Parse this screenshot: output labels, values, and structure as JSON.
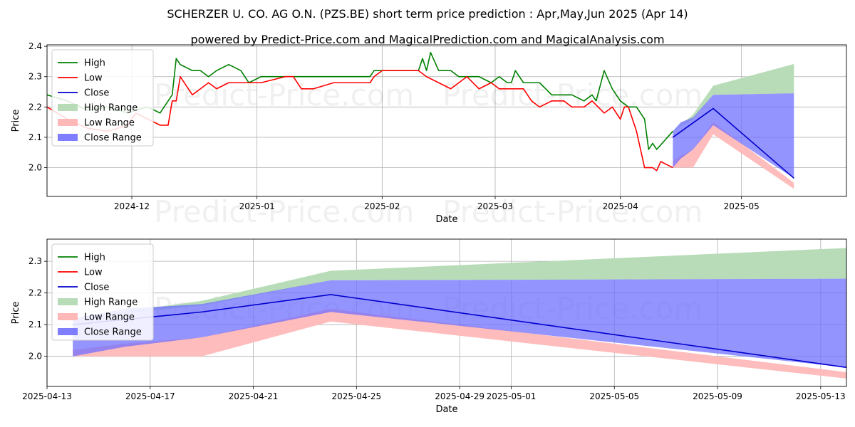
{
  "title": "SCHERZER U. CO. AG O.N. (PZS.BE) short term price prediction : Apr,May,Jun 2025 (Apr 14)",
  "subtitle": "powered by Predict-Price.com and MagicalPrediction.com and MagicalAnalysis.com",
  "watermark": "Predict-Price.com",
  "colors": {
    "high": "#008000",
    "low": "#ff0000",
    "close": "#0000cc",
    "high_range": "#b8dcb8",
    "low_range": "#ffb8b8",
    "close_range": "#7070ff"
  },
  "chart_data": [
    {
      "type": "line",
      "xlabel": "Date",
      "ylabel": "Price",
      "x_ticks": [
        "2024-12",
        "2025-01",
        "2025-02",
        "2025-03",
        "2025-04",
        "2025-05"
      ],
      "y_ticks": [
        "2.0",
        "2.1",
        "2.2",
        "2.3",
        "2.4"
      ],
      "ylim": [
        1.905,
        2.405
      ],
      "xlim": [
        "2024-11-10",
        "2025-05-27"
      ],
      "grid": true,
      "legend_position": "top-left",
      "legend": [
        "High",
        "Low",
        "Close",
        "High Range",
        "Low Range",
        "Close Range"
      ],
      "series": [
        {
          "name": "High",
          "x": [
            "2024-11-10",
            "2024-11-15",
            "2024-11-20",
            "2024-11-25",
            "2024-11-30",
            "2024-12-02",
            "2024-12-05",
            "2024-12-08",
            "2024-12-10",
            "2024-12-11",
            "2024-12-12",
            "2024-12-13",
            "2024-12-16",
            "2024-12-18",
            "2024-12-20",
            "2024-12-22",
            "2024-12-25",
            "2024-12-28",
            "2024-12-30",
            "2025-01-02",
            "2025-01-05",
            "2025-01-10",
            "2025-01-15",
            "2025-01-20",
            "2025-01-25",
            "2025-01-29",
            "2025-01-30",
            "2025-02-01",
            "2025-02-05",
            "2025-02-10",
            "2025-02-11",
            "2025-02-12",
            "2025-02-13",
            "2025-02-15",
            "2025-02-18",
            "2025-02-20",
            "2025-02-22",
            "2025-02-25",
            "2025-02-28",
            "2025-03-02",
            "2025-03-04",
            "2025-03-05",
            "2025-03-06",
            "2025-03-08",
            "2025-03-10",
            "2025-03-12",
            "2025-03-15",
            "2025-03-18",
            "2025-03-20",
            "2025-03-23",
            "2025-03-25",
            "2025-03-26",
            "2025-03-28",
            "2025-03-30",
            "2025-04-01",
            "2025-04-03",
            "2025-04-05",
            "2025-04-07",
            "2025-04-08",
            "2025-04-09",
            "2025-04-10",
            "2025-04-14"
          ],
          "values": [
            2.24,
            2.22,
            2.19,
            2.2,
            2.18,
            2.19,
            2.2,
            2.18,
            2.22,
            2.24,
            2.36,
            2.34,
            2.32,
            2.32,
            2.3,
            2.32,
            2.34,
            2.32,
            2.28,
            2.3,
            2.3,
            2.3,
            2.3,
            2.3,
            2.3,
            2.3,
            2.32,
            2.32,
            2.32,
            2.32,
            2.36,
            2.32,
            2.38,
            2.32,
            2.32,
            2.3,
            2.3,
            2.3,
            2.28,
            2.3,
            2.28,
            2.28,
            2.32,
            2.28,
            2.28,
            2.28,
            2.24,
            2.24,
            2.24,
            2.22,
            2.24,
            2.22,
            2.32,
            2.26,
            2.22,
            2.2,
            2.2,
            2.16,
            2.06,
            2.08,
            2.06,
            2.12
          ]
        },
        {
          "name": "Low",
          "x": [
            "2024-11-10",
            "2024-11-15",
            "2024-11-20",
            "2024-11-25",
            "2024-11-30",
            "2024-12-02",
            "2024-12-05",
            "2024-12-08",
            "2024-12-10",
            "2024-12-11",
            "2024-12-12",
            "2024-12-13",
            "2024-12-16",
            "2024-12-18",
            "2024-12-20",
            "2024-12-22",
            "2024-12-25",
            "2024-12-28",
            "2024-12-30",
            "2025-01-02",
            "2025-01-05",
            "2025-01-08",
            "2025-01-10",
            "2025-01-12",
            "2025-01-15",
            "2025-01-20",
            "2025-01-25",
            "2025-01-29",
            "2025-01-30",
            "2025-02-01",
            "2025-02-05",
            "2025-02-10",
            "2025-02-12",
            "2025-02-15",
            "2025-02-18",
            "2025-02-20",
            "2025-02-22",
            "2025-02-25",
            "2025-02-28",
            "2025-03-02",
            "2025-03-05",
            "2025-03-08",
            "2025-03-10",
            "2025-03-12",
            "2025-03-15",
            "2025-03-18",
            "2025-03-20",
            "2025-03-23",
            "2025-03-25",
            "2025-03-28",
            "2025-03-30",
            "2025-04-01",
            "2025-04-02",
            "2025-04-03",
            "2025-04-05",
            "2025-04-07",
            "2025-04-09",
            "2025-04-10",
            "2025-04-11",
            "2025-04-14"
          ],
          "values": [
            2.2,
            2.16,
            2.13,
            2.12,
            2.14,
            2.18,
            2.16,
            2.14,
            2.14,
            2.22,
            2.22,
            2.3,
            2.24,
            2.26,
            2.28,
            2.26,
            2.28,
            2.28,
            2.28,
            2.28,
            2.29,
            2.3,
            2.3,
            2.26,
            2.26,
            2.28,
            2.28,
            2.28,
            2.3,
            2.32,
            2.32,
            2.32,
            2.3,
            2.28,
            2.26,
            2.28,
            2.3,
            2.26,
            2.28,
            2.26,
            2.26,
            2.26,
            2.22,
            2.2,
            2.22,
            2.22,
            2.2,
            2.2,
            2.22,
            2.18,
            2.2,
            2.16,
            2.2,
            2.2,
            2.12,
            2.0,
            2.0,
            1.99,
            2.02,
            2.0
          ]
        },
        {
          "name": "Close",
          "x": [
            "2025-04-14",
            "2025-04-24",
            "2025-05-14"
          ],
          "values": [
            2.1,
            2.195,
            1.965
          ]
        }
      ],
      "ranges": [
        {
          "name": "High Range",
          "x": [
            "2025-04-14",
            "2025-04-19",
            "2025-04-24",
            "2025-05-14"
          ],
          "upper": [
            2.12,
            2.175,
            2.27,
            2.342
          ],
          "lower": [
            2.12,
            2.16,
            2.24,
            2.245
          ]
        },
        {
          "name": "Low Range",
          "x": [
            "2025-04-14",
            "2025-04-16",
            "2025-04-19",
            "2025-04-24",
            "2025-05-14"
          ],
          "upper": [
            2.02,
            2.04,
            2.06,
            2.15,
            1.95
          ],
          "lower": [
            2.0,
            2.0,
            2.0,
            2.11,
            1.93
          ]
        },
        {
          "name": "Close Range",
          "x": [
            "2025-04-14",
            "2025-04-16",
            "2025-04-19",
            "2025-04-24",
            "2025-05-14"
          ],
          "upper": [
            2.12,
            2.15,
            2.165,
            2.24,
            2.245
          ],
          "lower": [
            2.0,
            2.03,
            2.06,
            2.14,
            1.965
          ]
        }
      ]
    },
    {
      "type": "line",
      "xlabel": "Date",
      "ylabel": "Price",
      "x_ticks": [
        "2025-04-13",
        "2025-04-17",
        "2025-04-21",
        "2025-04-25",
        "2025-04-29",
        "2025-05-01",
        "2025-05-05",
        "2025-05-09",
        "2025-05-13"
      ],
      "y_ticks": [
        "2.0",
        "2.1",
        "2.2",
        "2.3"
      ],
      "ylim": [
        1.905,
        2.37
      ],
      "xlim": [
        "2025-04-13",
        "2025-05-14"
      ],
      "grid": true,
      "legend_position": "top-left",
      "legend": [
        "High",
        "Low",
        "Close",
        "High Range",
        "Low Range",
        "Close Range"
      ],
      "series": [
        {
          "name": "Close",
          "x": [
            "2025-04-14",
            "2025-04-19",
            "2025-04-24",
            "2025-05-14"
          ],
          "values": [
            2.1,
            2.14,
            2.195,
            1.965
          ]
        }
      ],
      "ranges": [
        {
          "name": "High Range",
          "x": [
            "2025-04-14",
            "2025-04-19",
            "2025-04-24",
            "2025-05-14"
          ],
          "upper": [
            2.12,
            2.175,
            2.27,
            2.342
          ],
          "lower": [
            2.12,
            2.16,
            2.24,
            2.245
          ]
        },
        {
          "name": "Low Range",
          "x": [
            "2025-04-14",
            "2025-04-16",
            "2025-04-19",
            "2025-04-24",
            "2025-05-14"
          ],
          "upper": [
            2.02,
            2.04,
            2.06,
            2.15,
            1.95
          ],
          "lower": [
            2.0,
            2.0,
            2.0,
            2.11,
            1.93
          ]
        },
        {
          "name": "Close Range",
          "x": [
            "2025-04-14",
            "2025-04-16",
            "2025-04-19",
            "2025-04-24",
            "2025-05-14"
          ],
          "upper": [
            2.12,
            2.15,
            2.165,
            2.24,
            2.245
          ],
          "lower": [
            2.0,
            2.03,
            2.06,
            2.14,
            1.965
          ]
        }
      ]
    }
  ]
}
